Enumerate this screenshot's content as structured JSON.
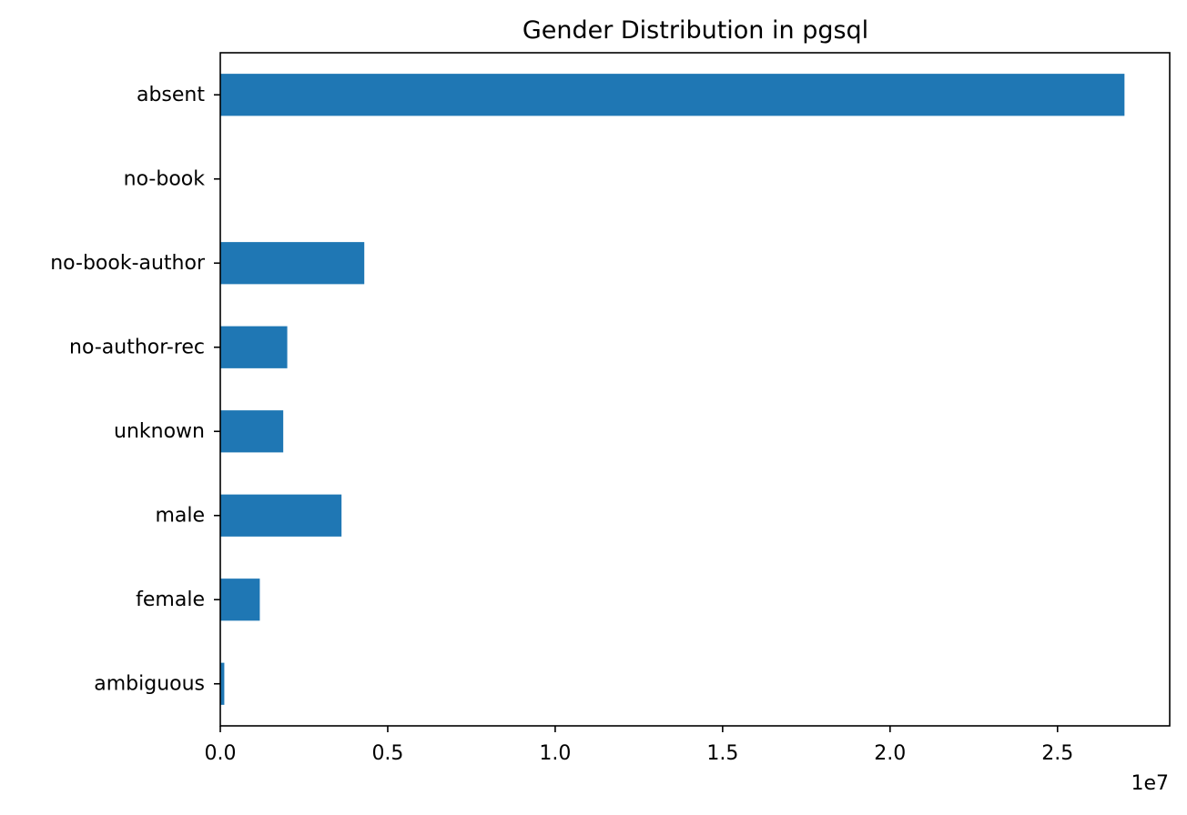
{
  "chart_data": {
    "type": "bar",
    "orientation": "horizontal",
    "title": "Gender Distribution in pgsql",
    "xlabel": "",
    "ylabel": "",
    "x_offset_label": "1e7",
    "categories": [
      "absent",
      "no-book",
      "no-book-author",
      "no-author-rec",
      "unknown",
      "male",
      "female",
      "ambiguous"
    ],
    "values": [
      27000000,
      0,
      4300000,
      2000000,
      1880000,
      3620000,
      1180000,
      120000
    ],
    "xlim": [
      0,
      28350000
    ],
    "xticks": [
      0,
      5000000,
      10000000,
      15000000,
      20000000,
      25000000
    ],
    "xtick_labels": [
      "0.0",
      "0.5",
      "1.0",
      "1.5",
      "2.0",
      "2.5"
    ],
    "bar_color": "#1f77b4",
    "grid": false,
    "legend": "none"
  }
}
